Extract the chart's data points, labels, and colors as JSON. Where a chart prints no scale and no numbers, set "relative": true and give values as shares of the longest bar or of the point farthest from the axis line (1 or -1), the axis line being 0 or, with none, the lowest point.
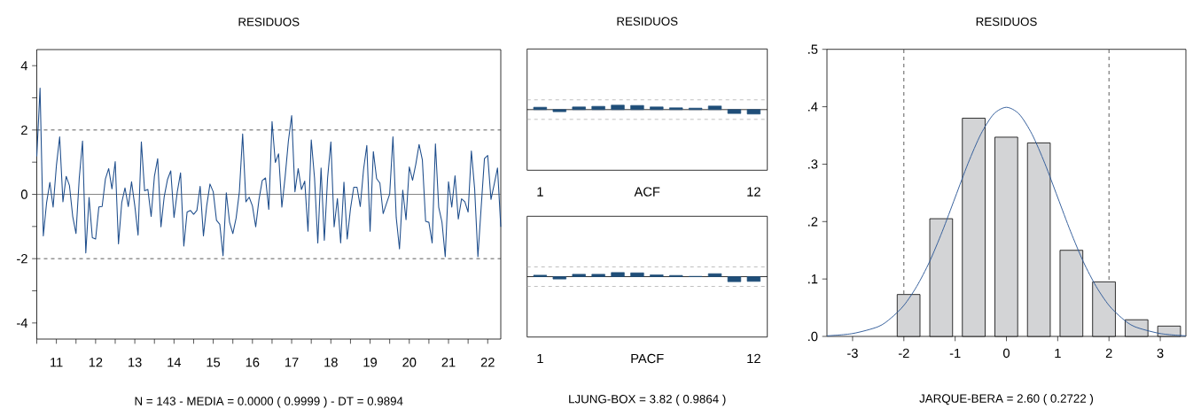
{
  "chart_data": [
    {
      "type": "line",
      "title": "RESIDUOS",
      "color": "#1f4e8c",
      "annotations": [
        "N = 143  -  MEDIA = 0.0000 ( 0.9999 )  -  DT = 0.9894"
      ],
      "x": [
        "2011-01",
        "2011-02",
        "2011-03",
        "2011-04",
        "2011-05",
        "2011-06",
        "2011-07",
        "2011-08",
        "2011-09",
        "2011-10",
        "2011-11",
        "2011-12",
        "2012-01",
        "2012-02",
        "2012-03",
        "2012-04",
        "2012-05",
        "2012-06",
        "2012-07",
        "2012-08",
        "2012-09",
        "2012-10",
        "2012-11",
        "2012-12",
        "2013-01",
        "2013-02",
        "2013-03",
        "2013-04",
        "2013-05",
        "2013-06",
        "2013-07",
        "2013-08",
        "2013-09",
        "2013-10",
        "2013-11",
        "2013-12",
        "2014-01",
        "2014-02",
        "2014-03",
        "2014-04",
        "2014-05",
        "2014-06",
        "2014-07",
        "2014-08",
        "2014-09",
        "2014-10",
        "2014-11",
        "2014-12",
        "2015-01",
        "2015-02",
        "2015-03",
        "2015-04",
        "2015-05",
        "2015-06",
        "2015-07",
        "2015-08",
        "2015-09",
        "2015-10",
        "2015-11",
        "2015-12",
        "2016-01",
        "2016-02",
        "2016-03",
        "2016-04",
        "2016-05",
        "2016-06",
        "2016-07",
        "2016-08",
        "2016-09",
        "2016-10",
        "2016-11",
        "2016-12",
        "2017-01",
        "2017-02",
        "2017-03",
        "2017-04",
        "2017-05",
        "2017-06",
        "2017-07",
        "2017-08",
        "2017-09",
        "2017-10",
        "2017-11",
        "2017-12",
        "2018-01",
        "2018-02",
        "2018-03",
        "2018-04",
        "2018-05",
        "2018-06",
        "2018-07",
        "2018-08",
        "2018-09",
        "2018-10",
        "2018-11",
        "2018-12",
        "2019-01",
        "2019-02",
        "2019-03",
        "2019-04",
        "2019-05",
        "2019-06",
        "2019-07",
        "2019-08",
        "2019-09",
        "2019-10",
        "2019-11",
        "2019-12",
        "2020-01",
        "2020-02",
        "2020-03",
        "2020-04",
        "2020-05",
        "2020-06",
        "2020-07",
        "2020-08",
        "2020-09",
        "2020-10",
        "2020-11",
        "2020-12",
        "2021-01",
        "2021-02",
        "2021-03",
        "2021-04",
        "2021-05",
        "2021-06",
        "2021-07",
        "2021-08",
        "2021-09",
        "2021-10",
        "2021-11",
        "2021-12",
        "2022-01",
        "2022-02",
        "2022-03",
        "2022-04",
        "2022-05",
        "2022-06",
        "2022-07",
        "2022-08",
        "2022-09",
        "2022-10",
        "2022-11"
      ],
      "values": [
        1.18,
        3.3,
        -1.29,
        -0.26,
        0.37,
        -0.4,
        0.89,
        1.79,
        -0.23,
        0.56,
        0.27,
        -0.69,
        -1.22,
        0.51,
        1.66,
        -1.82,
        -0.1,
        -1.35,
        -1.39,
        -0.39,
        -0.38,
        0.48,
        0.8,
        0.17,
        1.02,
        -1.54,
        -0.26,
        0.2,
        -0.38,
        0.39,
        -0.36,
        -1.27,
        1.63,
        0.11,
        0.15,
        -0.69,
        0.56,
        1.11,
        -1.01,
        -0.07,
        0.46,
        0.73,
        -0.72,
        0.08,
        0.67,
        -1.61,
        -0.55,
        -0.5,
        -0.62,
        -0.5,
        0.25,
        -1.29,
        -0.36,
        0.32,
        0.08,
        -0.81,
        -0.93,
        -1.91,
        0.05,
        -0.87,
        -1.22,
        -0.74,
        0.08,
        1.88,
        -0.23,
        -0.09,
        -0.36,
        -1.01,
        -0.16,
        0.43,
        0.51,
        -0.47,
        2.26,
        0.99,
        1.26,
        -0.4,
        0.54,
        1.66,
        2.45,
        0.08,
        0.8,
        0.15,
        0.41,
        -1.15,
        1.69,
        0.51,
        -1.51,
        0.82,
        -1.43,
        0.51,
        1.63,
        -1.01,
        -0.13,
        -1.51,
        0.38,
        -1.39,
        -0.45,
        0.22,
        0.22,
        -0.38,
        0.77,
        1.52,
        -1.15,
        1.33,
        0.49,
        0.35,
        -0.6,
        -0.29,
        0.01,
        1.79,
        -0.72,
        -1.7,
        0.13,
        -0.79,
        0.85,
        0.44,
        0.94,
        1.55,
        1.07,
        -0.84,
        -0.87,
        -1.51,
        1.57,
        -0.4,
        -0.86,
        -1.94,
        0.39,
        -0.4,
        0.58,
        -0.77,
        -0.14,
        -0.23,
        -0.55,
        1.35,
        0.17,
        -1.94,
        -0.4,
        1.11,
        1.21,
        -0.16,
        0.32,
        0.82,
        -1.01
      ],
      "xlim": [
        "2011-01",
        "2022-11"
      ],
      "xticks": [
        {
          "value": "2011-01",
          "label": null
        },
        {
          "value": "2011-07",
          "label": "11"
        },
        {
          "value": "2012-01",
          "label": null
        },
        {
          "value": "2012-07",
          "label": "12"
        },
        {
          "value": "2013-01",
          "label": null
        },
        {
          "value": "2013-07",
          "label": "13"
        },
        {
          "value": "2014-01",
          "label": null
        },
        {
          "value": "2014-07",
          "label": "14"
        },
        {
          "value": "2015-01",
          "label": null
        },
        {
          "value": "2015-07",
          "label": "15"
        },
        {
          "value": "2016-01",
          "label": null
        },
        {
          "value": "2016-07",
          "label": "16"
        },
        {
          "value": "2017-01",
          "label": null
        },
        {
          "value": "2017-07",
          "label": "17"
        },
        {
          "value": "2018-01",
          "label": null
        },
        {
          "value": "2018-07",
          "label": "18"
        },
        {
          "value": "2019-01",
          "label": null
        },
        {
          "value": "2019-07",
          "label": "19"
        },
        {
          "value": "2020-01",
          "label": null
        },
        {
          "value": "2020-07",
          "label": "20"
        },
        {
          "value": "2021-01",
          "label": null
        },
        {
          "value": "2021-07",
          "label": "21"
        },
        {
          "value": "2022-01",
          "label": null
        },
        {
          "value": "2022-07",
          "label": "22"
        }
      ],
      "ylim": [
        -4.5,
        4.5
      ],
      "yticks": [
        -4,
        {
          "value": -3,
          "label": null
        },
        -2,
        {
          "value": -1,
          "label": null
        },
        0,
        {
          "value": 1,
          "label": null
        },
        2,
        {
          "value": 3,
          "label": null
        },
        4
      ],
      "ref_lines": [
        {
          "axis": "y",
          "value": 2,
          "line_style": "dashed",
          "color": "#333333"
        },
        {
          "axis": "y",
          "value": 0,
          "line_style": "solid",
          "color": "#666666"
        },
        {
          "axis": "y",
          "value": -2,
          "line_style": "dashed",
          "color": "#333333"
        }
      ]
    },
    {
      "type": "bar",
      "title": "RESIDUOS",
      "xlabel": "ACF",
      "relative": true,
      "color": "#1f4e79",
      "categories": [
        "1",
        null,
        null,
        null,
        null,
        null,
        null,
        null,
        null,
        null,
        null,
        "12"
      ],
      "values": [
        0.53,
        -0.47,
        0.6,
        0.73,
        1,
        0.93,
        0.6,
        0.4,
        0.33,
        0.8,
        -0.87,
        -1
      ],
      "ref_lines": [
        {
          "axis": "y",
          "value": 2.2,
          "line_style": "dashed",
          "color": "#b0b0b0"
        },
        {
          "axis": "y",
          "value": -2.2,
          "line_style": "dashed",
          "color": "#b0b0b0"
        }
      ]
    },
    {
      "type": "bar",
      "xlabel": "PACF",
      "relative": true,
      "color": "#1f4e79",
      "annotations": [
        "LJUNG-BOX = 3.82 ( 0.9864 )"
      ],
      "categories": [
        "1",
        null,
        null,
        null,
        null,
        null,
        null,
        null,
        null,
        null,
        null,
        "12"
      ],
      "values": [
        0.29,
        -0.47,
        0.47,
        0.47,
        0.82,
        0.76,
        0.35,
        0.24,
        0.06,
        0.59,
        -1,
        -0.94
      ],
      "ref_lines": [
        {
          "axis": "y",
          "value": 1.94,
          "line_style": "dashed",
          "color": "#b0b0b0"
        },
        {
          "axis": "y",
          "value": -1.94,
          "line_style": "dashed",
          "color": "#b0b0b0"
        }
      ]
    },
    {
      "type": "histogram",
      "title": "RESIDUOS",
      "annotations": [
        "JARQUE-BERA = 2.60  ( 0.2722 )"
      ],
      "bins": [
        -2.225,
        -1.59,
        -0.955,
        -0.32,
        0.315,
        0.95,
        1.585,
        2.22,
        2.855,
        3.49
      ],
      "series": [
        {
          "type": "histogram",
          "color": "#d3d4d6",
          "values": [
            0.073,
            0.205,
            0.38,
            0.347,
            0.337,
            0.15,
            0.095,
            0.029,
            0.018
          ]
        },
        {
          "type": "line",
          "color": "#2b5797",
          "x": [
            -3.5,
            -3,
            -2.5,
            -2.25,
            -2,
            -1.75,
            -1.5,
            -1.25,
            -1,
            -0.75,
            -0.5,
            -0.25,
            0,
            0.25,
            0.5,
            0.75,
            1,
            1.25,
            1.5,
            1.75,
            2,
            2.25,
            2.5,
            3,
            3.5
          ],
          "values": [
            0.001,
            0.005,
            0.017,
            0.032,
            0.054,
            0.087,
            0.13,
            0.183,
            0.242,
            0.301,
            0.352,
            0.387,
            0.399,
            0.387,
            0.352,
            0.301,
            0.242,
            0.183,
            0.13,
            0.087,
            0.054,
            0.032,
            0.017,
            0.005,
            0.001
          ]
        }
      ],
      "xlim": [
        -3.5,
        3.5
      ],
      "xticks": [
        -3,
        -2,
        -1,
        0,
        1,
        2,
        3
      ],
      "ylim": [
        0,
        0.5
      ],
      "yticks": [
        {
          "value": 0,
          "label": ".0"
        },
        {
          "value": 0.1,
          "label": ".1"
        },
        {
          "value": 0.2,
          "label": ".2"
        },
        {
          "value": 0.3,
          "label": ".3"
        },
        {
          "value": 0.4,
          "label": ".4"
        },
        {
          "value": 0.5,
          "label": ".5"
        }
      ],
      "ref_lines": [
        {
          "axis": "x",
          "value": -2,
          "line_style": "dashed",
          "color": "#333333"
        },
        {
          "axis": "x",
          "value": 2,
          "line_style": "dashed",
          "color": "#333333"
        }
      ]
    }
  ]
}
